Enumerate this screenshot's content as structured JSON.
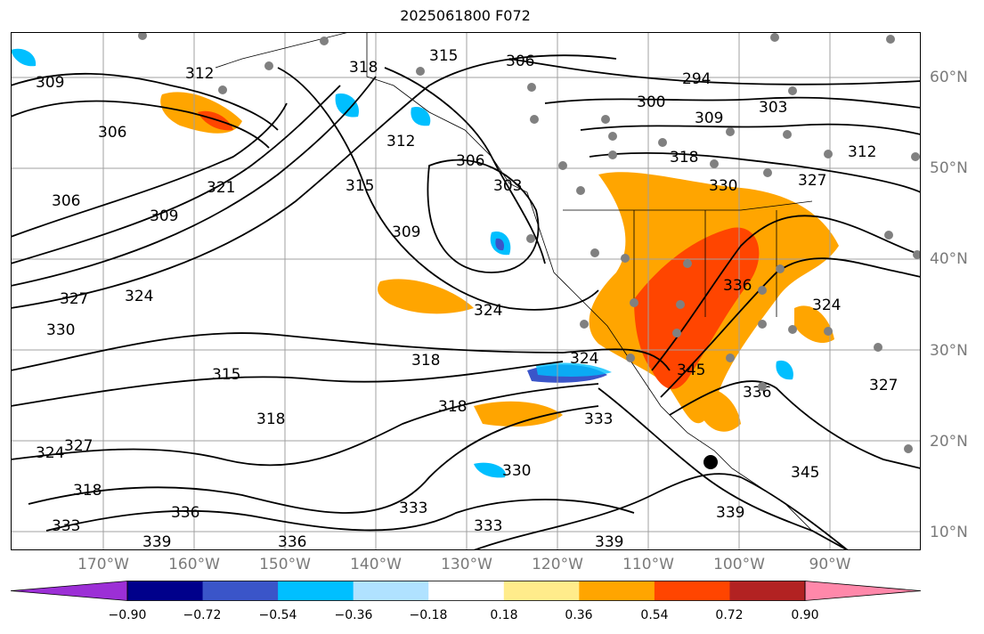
{
  "title": "2025061800 F072",
  "lat_labels": [
    "60°N",
    "50°N",
    "40°N",
    "30°N",
    "20°N",
    "10°N"
  ],
  "lon_labels": [
    "170°W",
    "160°W",
    "150°W",
    "140°W",
    "130°W",
    "120°W",
    "110°W",
    "100°W",
    "90°W"
  ],
  "contour_labels": [
    "309",
    "312",
    "318",
    "315",
    "306",
    "294",
    "300",
    "303",
    "309",
    "312",
    "306",
    "321",
    "306",
    "309",
    "315",
    "312",
    "306",
    "303",
    "318",
    "330",
    "327",
    "309",
    "327",
    "330",
    "324",
    "324",
    "336",
    "324",
    "318",
    "315",
    "318",
    "318",
    "324",
    "345",
    "336",
    "327",
    "333",
    "327",
    "324",
    "318",
    "336",
    "333",
    "333",
    "339",
    "336",
    "330",
    "333",
    "339",
    "345",
    "339"
  ],
  "colorbar": {
    "ticks": [
      "−0.90",
      "−0.72",
      "−0.54",
      "−0.36",
      "−0.18",
      "0.18",
      "0.36",
      "0.54",
      "0.72",
      "0.90"
    ],
    "colors": [
      "#9c2fd6",
      "#00008b",
      "#3a55c9",
      "#00bfff",
      "#b0e2ff",
      "#ffffff",
      "#ffec8b",
      "#ffa500",
      "#ff4500",
      "#b22222",
      "#ff88aa"
    ]
  }
}
